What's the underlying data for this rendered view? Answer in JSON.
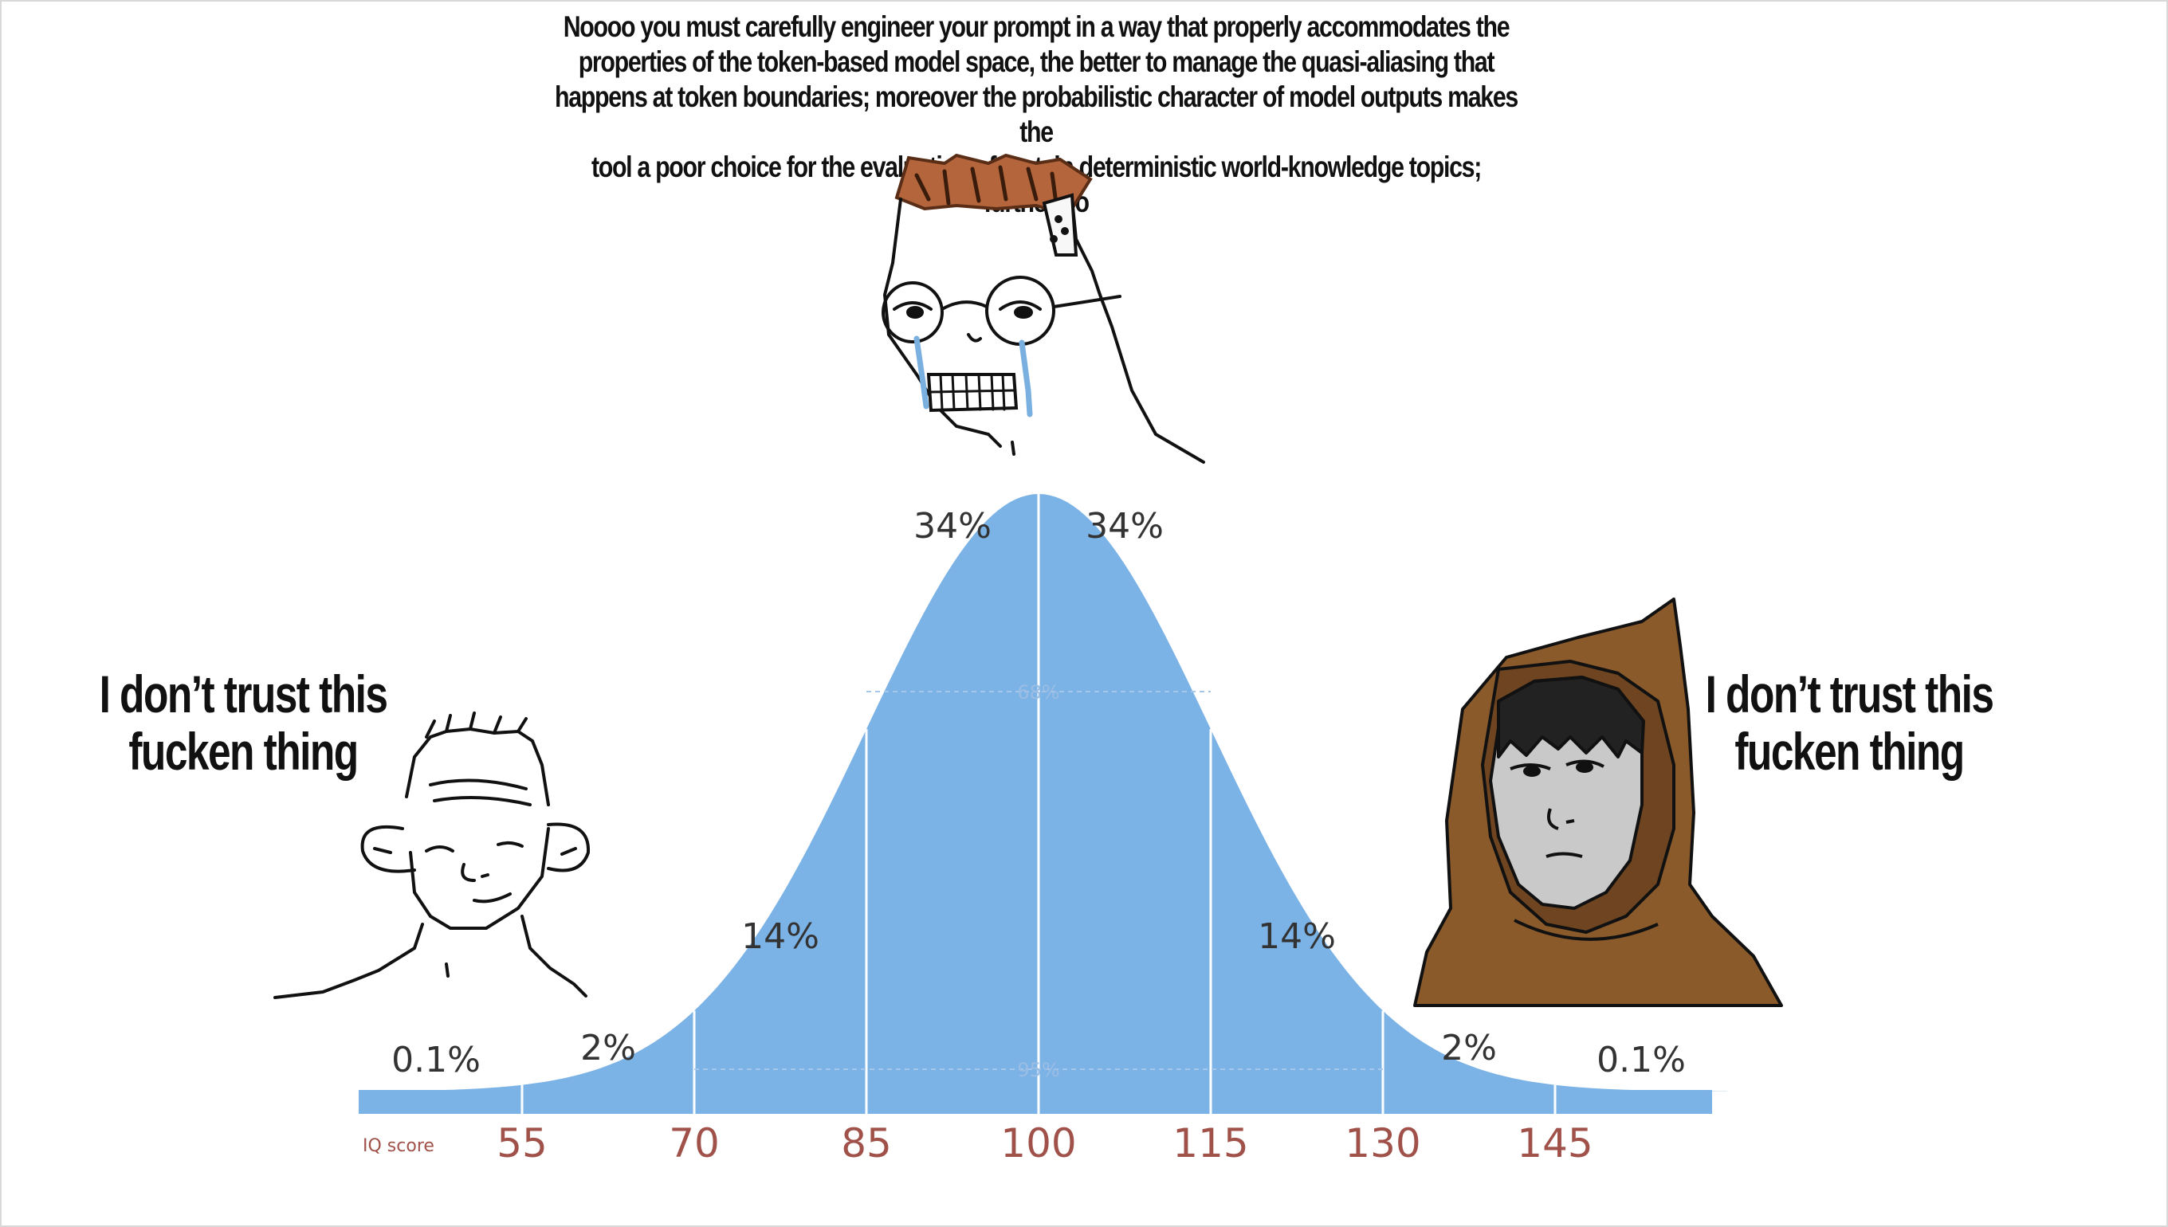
{
  "meme": {
    "top_caption": "Noooo you must carefully engineer your prompt in a way that properly accommodates the\nproperties of the  token-based model space, the better to manage the quasi-aliasing that\nhappens at token boundaries; moreover the probabilistic character of model outputs makes the\ntool a poor choice for the evaluation of certain deterministic world-knowledge topics; furthermo",
    "left_quote": "I don’t trust this\nfucken thing",
    "right_quote": "I don’t trust this\nfucken thing"
  },
  "chart_data": {
    "type": "area",
    "xlabel": "IQ score",
    "x_ticks": [
      55,
      70,
      85,
      100,
      115,
      130,
      145
    ],
    "x_range": [
      55,
      160
    ],
    "mean": 100,
    "sd": 15,
    "percent_labels": [
      {
        "label": "0.1%",
        "x": 47.5
      },
      {
        "label": "2%",
        "x": 62.5
      },
      {
        "label": "14%",
        "x": 77.5
      },
      {
        "label": "34%",
        "x": 92.5
      },
      {
        "label": "34%",
        "x": 107.5
      },
      {
        "label": "14%",
        "x": 122.5
      },
      {
        "label": "2%",
        "x": 137.5
      },
      {
        "label": "0.1%",
        "x": 152.5
      }
    ],
    "band_labels": [
      {
        "label": "68%",
        "from": 85,
        "to": 115
      },
      {
        "label": "95%",
        "from": 70,
        "to": 130
      }
    ],
    "colors": {
      "fill": "#7cb3e6",
      "tick": "#a0524a",
      "divider": "#ffffff"
    }
  }
}
